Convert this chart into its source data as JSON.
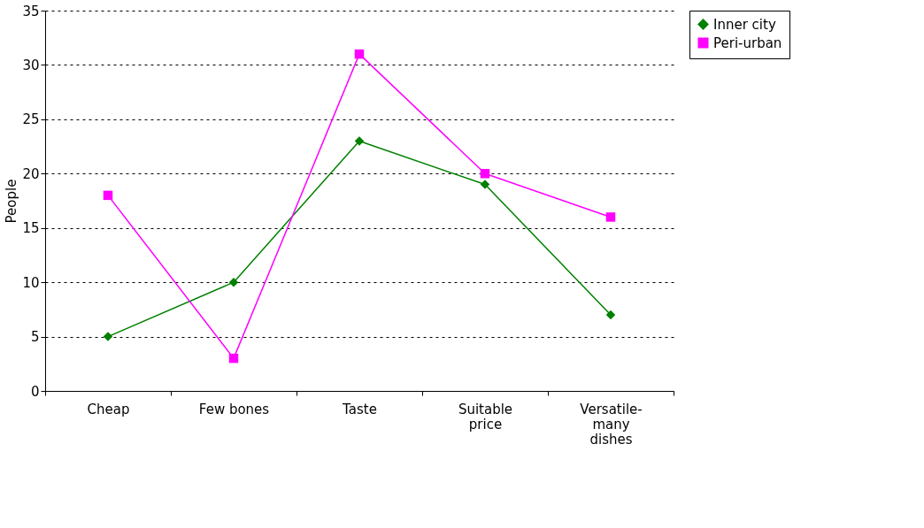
{
  "chart_data": {
    "type": "line",
    "ylabel": "People",
    "categories": [
      "Cheap",
      "Few bones",
      "Taste",
      "Suitable price",
      "Versatile-many dishes"
    ],
    "series": [
      {
        "name": "Inner city",
        "color": "#008000",
        "marker": "diamond",
        "values": [
          5,
          10,
          23,
          19,
          7
        ]
      },
      {
        "name": "Peri-urban",
        "color": "#ff00ff",
        "marker": "square",
        "values": [
          18,
          3,
          31,
          20,
          16
        ]
      }
    ],
    "ylim": [
      0,
      35
    ],
    "yticks": [
      0,
      5,
      10,
      15,
      20,
      25,
      30,
      35
    ],
    "grid": "y",
    "legend": "right",
    "line_style": "solid"
  }
}
